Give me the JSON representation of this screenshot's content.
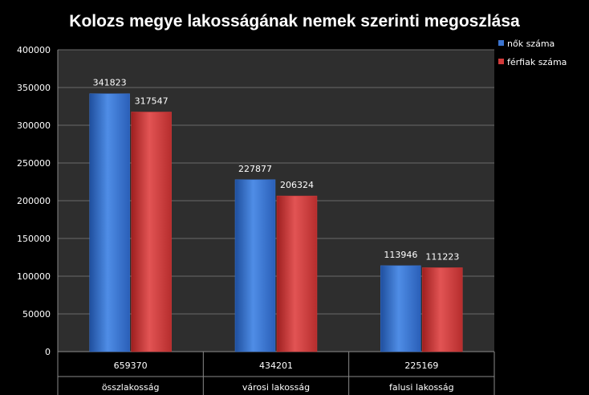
{
  "chart_data": {
    "type": "bar",
    "title": "Kolozs megye lakosságának nemek szerinti megoszlása",
    "xlabel": "",
    "ylabel": "",
    "ylim": [
      0,
      400000
    ],
    "yticks": [
      0,
      50000,
      100000,
      150000,
      200000,
      250000,
      300000,
      350000,
      400000
    ],
    "categories": [
      "összlakosság",
      "városi lakosság",
      "falusi lakosság"
    ],
    "totals": [
      "659370",
      "434201",
      "225169"
    ],
    "series": [
      {
        "name": "nők száma",
        "color": "#3b74d0",
        "values": [
          341823,
          227877,
          113946
        ]
      },
      {
        "name": "férfiak száma",
        "color": "#d23a3a",
        "values": [
          317547,
          206324,
          111223
        ]
      }
    ],
    "legend_position": "right",
    "grid": true,
    "background": "#2e2e2e"
  }
}
